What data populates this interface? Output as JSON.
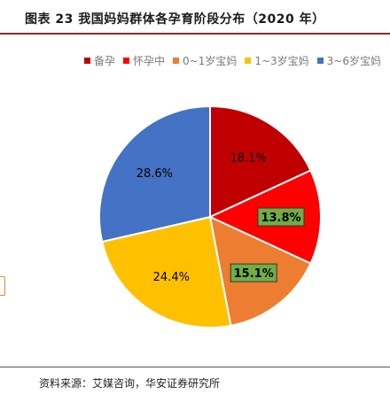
{
  "figure": {
    "title": "图表 23  我国妈妈群体各孕育阶段分布（2020 年）",
    "source": "资料来源：艾媒咨询，华安证券研究所"
  },
  "chart_data": {
    "type": "pie",
    "title": "",
    "start": "12 o'clock, clockwise",
    "legend_position": "top-right",
    "slices": [
      {
        "name": "备孕",
        "value": 18.1,
        "label": "18.1%",
        "color": "#c00000",
        "label_boxed": false
      },
      {
        "name": "怀孕中",
        "value": 13.8,
        "label": "13.8%",
        "color": "#ff0000",
        "label_boxed": true,
        "label_box_color": "#70ad47"
      },
      {
        "name": "0~1岁宝妈",
        "value": 15.1,
        "label": "15.1%",
        "color": "#ed7d31",
        "label_boxed": true,
        "label_box_color": "#70ad47"
      },
      {
        "name": "1~3岁宝妈",
        "value": 24.4,
        "label": "24.4%",
        "color": "#ffc000",
        "label_boxed": false
      },
      {
        "name": "3~6岁宝妈",
        "value": 28.6,
        "label": "28.6%",
        "color": "#4472c4",
        "label_boxed": false
      }
    ]
  }
}
